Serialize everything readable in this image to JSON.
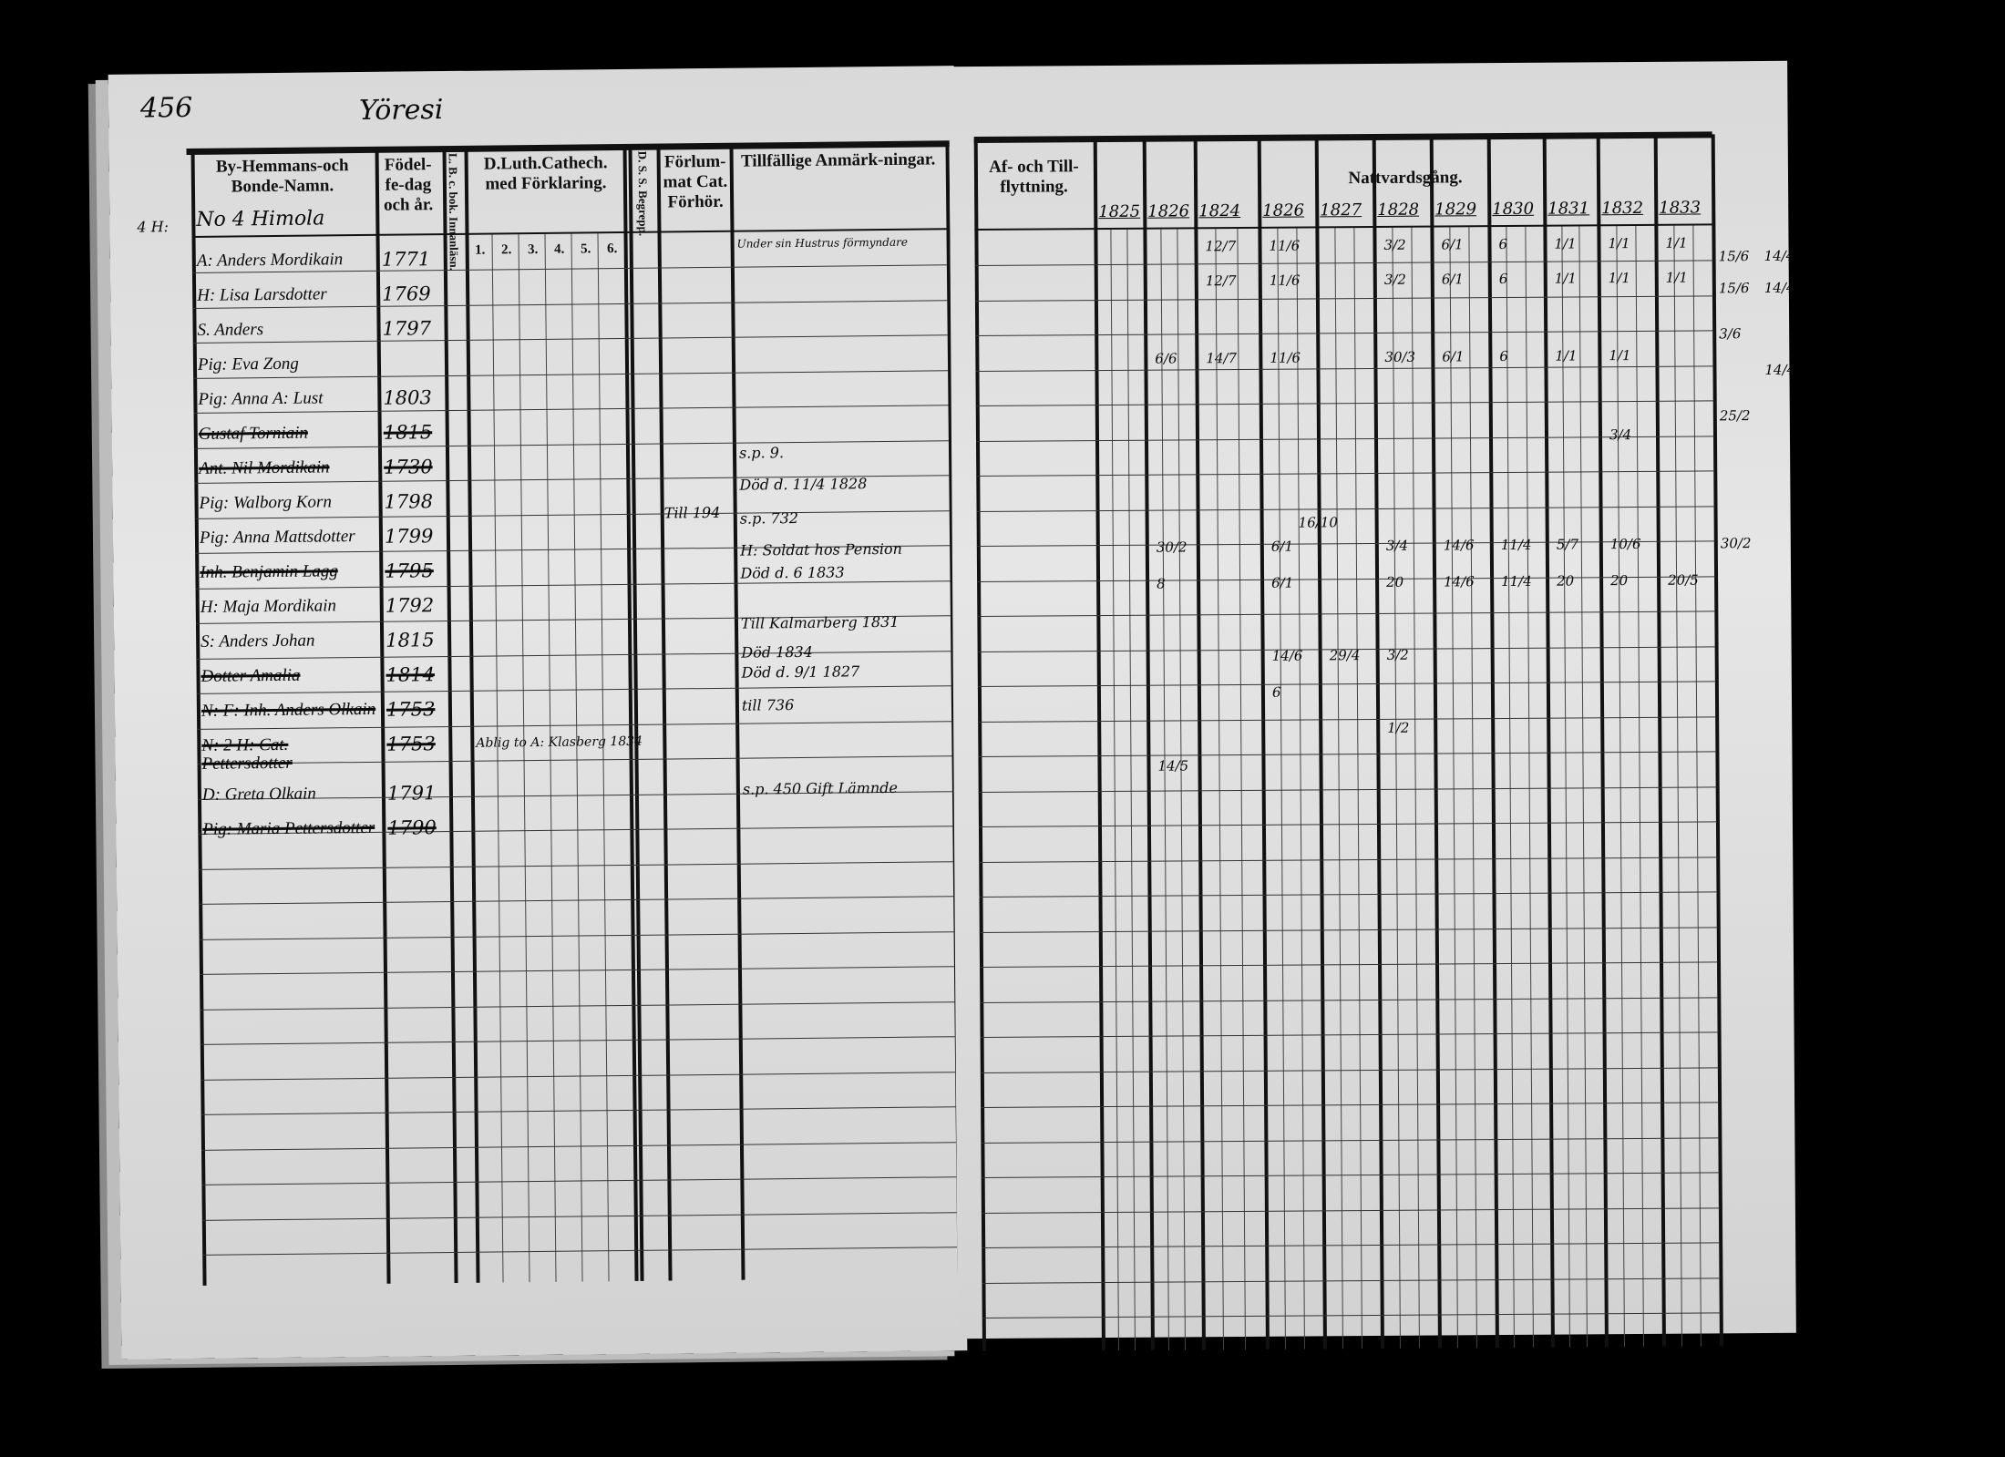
{
  "left_page": {
    "page_number": "456",
    "parish_heading": "Yöresi",
    "headers": {
      "name": "By-Hemmans-och Bonde-Namn.",
      "birth": "Födel-fe-dag och år.",
      "reading": "L. B. c. bok. Innanläsn.",
      "catechism": "D.Luth.Cathech. med Förklaring.",
      "catechism_grades": [
        "1.",
        "2.",
        "3.",
        "4.",
        "5.",
        "6."
      ],
      "understanding": "D. S. S. Begrepp.",
      "exam": "Förlum-mat Cat. Förhör.",
      "remarks": "Tillfällige Anmärk-ningar."
    },
    "farm_heading": "No 4 Himola",
    "margin_note": "4 H:",
    "entries": [
      {
        "name": "A: Anders Mordikain",
        "year": "1771",
        "struck": false
      },
      {
        "name": "H: Lisa Larsdotter",
        "year": "1769",
        "struck": false
      },
      {
        "name": "S. Anders",
        "year": "1797",
        "struck": false
      },
      {
        "name": "Pig: Eva Zong",
        "year": "",
        "struck": false
      },
      {
        "name": "Pig: Anna A: Lust",
        "year": "1803",
        "struck": false
      },
      {
        "name": "Gustaf Torniain",
        "year": "1815",
        "struck": true
      },
      {
        "name": "Ant. Nil Mordikain",
        "year": "1730",
        "struck": true
      },
      {
        "name": "Pig: Walborg Korn",
        "year": "1798",
        "struck": false
      },
      {
        "name": "Pig: Anna Mattsdotter",
        "year": "1799",
        "struck": false
      },
      {
        "name": "Inh. Benjamin Lagg",
        "year": "1795",
        "struck": true
      },
      {
        "name": "H: Maja Mordikain",
        "year": "1792",
        "struck": false
      },
      {
        "name": "S: Anders Johan",
        "year": "1815",
        "struck": false
      },
      {
        "name": "Dotter Amalia",
        "year": "1814",
        "struck": true
      },
      {
        "name": "N: F: Inh. Anders Olkain",
        "year": "1753",
        "struck": true
      },
      {
        "name": "N: 2 H: Cat. Pettersdotter",
        "year": "1753",
        "struck": true
      },
      {
        "name": "D: Greta Olkain",
        "year": "1791",
        "struck": false
      },
      {
        "name": "Pig: Maria Pettersdotter",
        "year": "1790",
        "struck": true
      }
    ],
    "remarks": [
      "Under sin Hustrus förmyndare",
      "s.p. 9.",
      "Död d. 11/4 1828",
      "s.p. 732",
      "H: Soldat hos Pension",
      "Död d. 6 1833",
      "Till Kalmarberg 1831",
      "Död 1834",
      "Död d. 9/1 1827",
      "till 736",
      "s.p. 450 Gift Lämnde"
    ],
    "exam_note": "Till 194",
    "catechism_note": "Ablig to A: Klasberg 1834"
  },
  "right_page": {
    "headers": {
      "moving": "Af- och Till-flyttning.",
      "communion": "Nattvardsgång."
    },
    "years": [
      "1825",
      "1826",
      "1824",
      "1826",
      "1827",
      "1828",
      "1829",
      "1830",
      "1831",
      "1832",
      "1833"
    ],
    "communion_marks": [
      "12/7",
      "11/6",
      "3/2",
      "6/1",
      "6",
      "1/1",
      "1/1",
      "1/1",
      "12/7",
      "11/6",
      "3/2",
      "6/1",
      "6",
      "1/1",
      "1/1",
      "1/1",
      "6/6",
      "14/7",
      "11/6",
      "30/3",
      "6/1",
      "6",
      "1/1",
      "1/1",
      "3/4",
      "30/2",
      "6/1",
      "16/10",
      "3/4",
      "14/6",
      "11/4",
      "5/7",
      "10/6",
      "8",
      "6/1",
      "20",
      "14/6",
      "11/4",
      "20",
      "20",
      "20/5",
      "14/6",
      "29/4",
      "3/2",
      "6",
      "1/2",
      "14/5"
    ],
    "margin_marks": [
      "15/6",
      "14/4",
      "15/6",
      "14/4",
      "3/6",
      "14/4",
      "25/2",
      "30/2"
    ]
  }
}
